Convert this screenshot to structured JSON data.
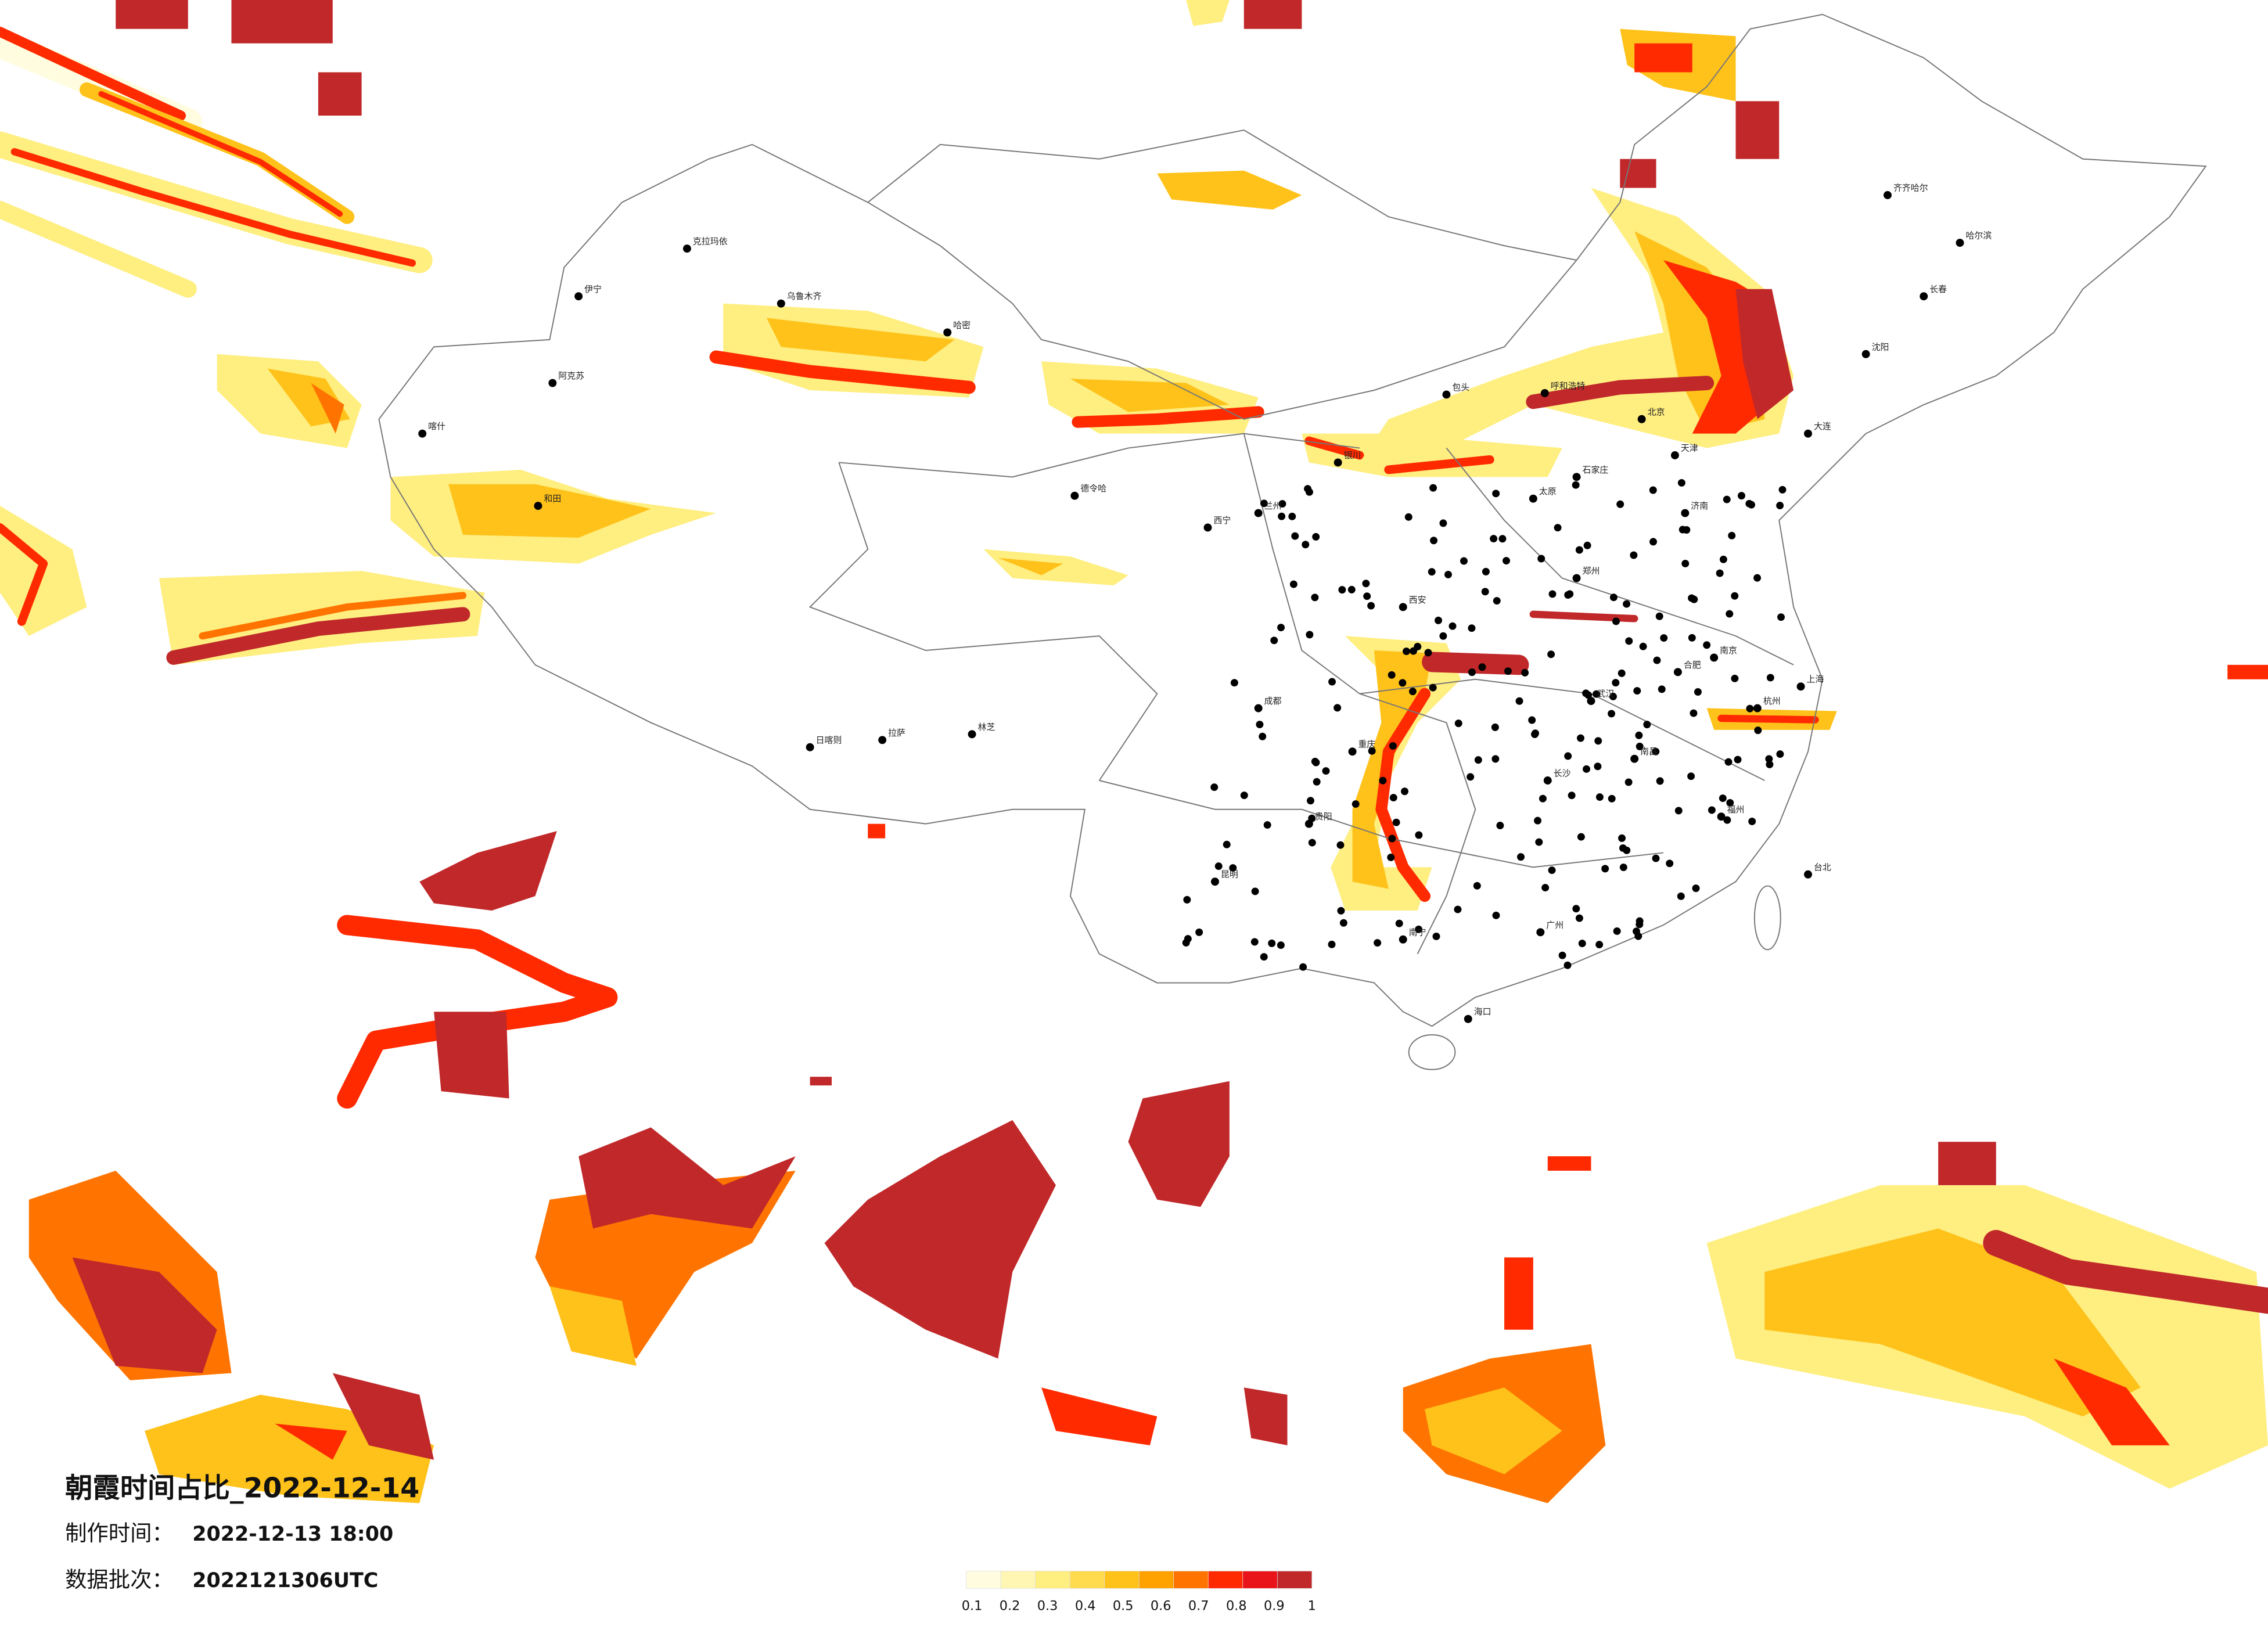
{
  "header": {
    "title": "朝霞时间占比_2022-12-14",
    "made_label": "制作时间：",
    "made_time": "2022-12-13 18:00",
    "batch_label": "数据批次：",
    "batch": "2022121306UTC"
  },
  "legend": {
    "colors": [
      "#fffce0",
      "#fff6b4",
      "#ffee80",
      "#ffdb4d",
      "#ffc21a",
      "#ffa200",
      "#ff7400",
      "#ff2a00",
      "#e8141a",
      "#c0282a"
    ],
    "ticks": [
      0.1,
      0.2,
      0.3,
      0.4,
      0.5,
      0.6,
      0.7,
      0.8,
      0.9,
      1
    ]
  },
  "cities": [
    "克拉玛依",
    "伊宁",
    "乌鲁木齐",
    "哈密",
    "阿克苏",
    "喀什",
    "和田",
    "德令哈",
    "日喀则",
    "拉萨",
    "林芝",
    "呼和浩特",
    "包头",
    "北京",
    "天津",
    "石家庄",
    "太原",
    "济南",
    "郑州",
    "西安",
    "兰州",
    "西宁",
    "银川",
    "成都",
    "重庆",
    "贵阳",
    "昆明",
    "南宁",
    "广州",
    "福州",
    "南京",
    "上海",
    "杭州",
    "武汉",
    "长沙",
    "南昌",
    "合肥",
    "哈尔滨",
    "长春",
    "沈阳",
    "大连",
    "海口",
    "台北",
    "齐齐哈尔"
  ]
}
